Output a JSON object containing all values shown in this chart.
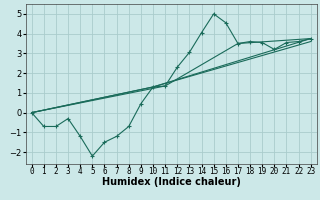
{
  "xlabel": "Humidex (Indice chaleur)",
  "background_color": "#cce8e8",
  "grid_color": "#aacccc",
  "line_color": "#1a6b5a",
  "xlim": [
    -0.5,
    23.5
  ],
  "ylim": [
    -2.6,
    5.5
  ],
  "yticks": [
    -2,
    -1,
    0,
    1,
    2,
    3,
    4,
    5
  ],
  "xticks": [
    0,
    1,
    2,
    3,
    4,
    5,
    6,
    7,
    8,
    9,
    10,
    11,
    12,
    13,
    14,
    15,
    16,
    17,
    18,
    19,
    20,
    21,
    22,
    23
  ],
  "main_line": {
    "x": [
      0,
      1,
      2,
      3,
      4,
      5,
      6,
      7,
      8,
      9,
      10,
      11,
      12,
      13,
      14,
      15,
      16,
      17,
      18,
      19,
      20,
      21,
      22,
      23
    ],
    "y": [
      0.0,
      -0.7,
      -0.7,
      -0.3,
      -1.2,
      -2.2,
      -1.5,
      -1.2,
      -0.7,
      0.45,
      1.3,
      1.35,
      2.3,
      3.05,
      4.05,
      5.0,
      4.55,
      3.5,
      3.6,
      3.55,
      3.2,
      3.55,
      3.6,
      3.75
    ]
  },
  "smooth_lines": [
    {
      "x": [
        0,
        10,
        23
      ],
      "y": [
        0.0,
        1.3,
        3.75
      ]
    },
    {
      "x": [
        0,
        10,
        23
      ],
      "y": [
        0.0,
        1.3,
        3.6
      ]
    },
    {
      "x": [
        0,
        11,
        17,
        23
      ],
      "y": [
        0.0,
        1.35,
        3.5,
        3.75
      ]
    }
  ],
  "xlabel_fontsize": 7,
  "tick_fontsize": 5.5
}
